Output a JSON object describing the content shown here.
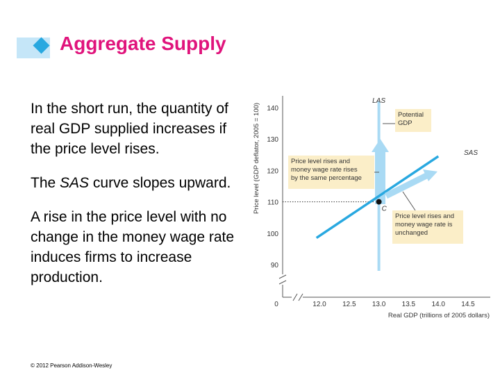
{
  "slide": {
    "title": "Aggregate Supply",
    "paragraphs": [
      {
        "before": "In the short run, the quantity of real GDP supplied increases if the price level rises.",
        "italic": "",
        "after": ""
      },
      {
        "before": "The ",
        "italic": "SAS",
        "after": " curve slopes upward."
      },
      {
        "before": "A rise in the price level with no change in the money wage rate induces firms to increase production.",
        "italic": "",
        "after": ""
      }
    ],
    "footer": "© 2012 Pearson Addison-Wesley"
  },
  "colors": {
    "title": "#e0147c",
    "title_diamond": "#28a8e0",
    "title_bar": "#c5e6f8",
    "sas_line": "#28a8e0",
    "las_line": "#a9daf4",
    "arrow": "#a9daf4",
    "callout_bg": "#fbeec8"
  },
  "chart_data": {
    "type": "line",
    "ylabel": "Price level (GDP deflator, 2005 = 100)",
    "xlabel": "Real GDP (trillions of 2005 dollars)",
    "y_ticks": [
      "140",
      "130",
      "120",
      "110",
      "100",
      "90"
    ],
    "x_ticks": [
      "0",
      "12.0",
      "12.5",
      "13.0",
      "13.5",
      "14.0",
      "14.5"
    ],
    "xlim": [
      12.0,
      14.5
    ],
    "ylim": [
      90,
      140
    ],
    "series": [
      {
        "name": "SAS",
        "points": [
          [
            11.95,
            98.5
          ],
          [
            14.0,
            124.5
          ]
        ]
      },
      {
        "name": "LAS",
        "points": [
          [
            13.0,
            88
          ],
          [
            13.0,
            142
          ]
        ]
      }
    ],
    "point": {
      "label": "C",
      "x": 13.0,
      "y": 110
    },
    "annotations": {
      "potential_gdp": [
        "Potential",
        "GDP"
      ],
      "price_and_wage": [
        "Price level rises and",
        "money wage rate rises",
        "by the same percentage"
      ],
      "price_only": [
        "Price level rises and",
        "money wage rate is",
        "unchanged"
      ]
    }
  }
}
